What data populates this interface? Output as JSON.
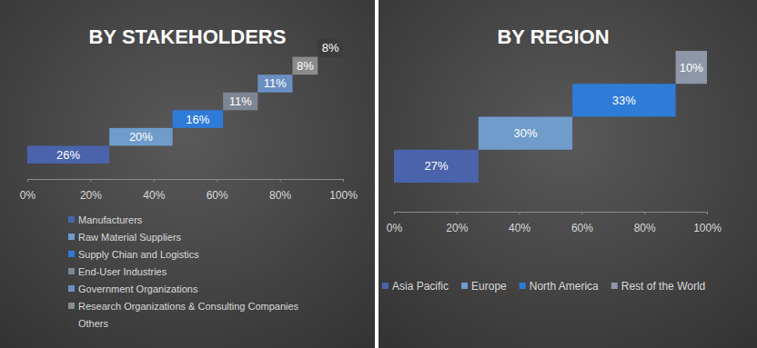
{
  "chart_data": [
    {
      "type": "waterfall",
      "title": "BY STAKEHOLDERS",
      "orientation": "horizontal",
      "categories": [
        "Manufacturers",
        "Raw Material Suppliers",
        "Supply Chian and Logistics",
        "End-User Industries",
        "Government Organizations",
        "Research Organizations & Consulting Companies",
        "Others"
      ],
      "values": [
        26,
        20,
        16,
        11,
        11,
        8,
        8
      ],
      "value_labels": [
        "26%",
        "20%",
        "16%",
        "11%",
        "11%",
        "8%",
        "8%"
      ],
      "colors": [
        "#4a63aa",
        "#709ccc",
        "#2f7bd8",
        "#7e8593",
        "#6b8fc2",
        "#8b8b8b",
        "#3c3c3c"
      ],
      "xlim": [
        0,
        100
      ],
      "xticks": [
        {
          "value": 0,
          "label": "0%"
        },
        {
          "value": 20,
          "label": "20%"
        },
        {
          "value": 40,
          "label": "40%"
        },
        {
          "value": 60,
          "label": "60%"
        },
        {
          "value": 80,
          "label": "80%"
        },
        {
          "value": 100,
          "label": "100%"
        }
      ],
      "data_labels": true,
      "tick_labels": "x",
      "legend": "bottom",
      "grid": false
    },
    {
      "type": "waterfall",
      "title": "BY REGION",
      "orientation": "horizontal",
      "categories": [
        "Asia Pacific",
        "Europe",
        "North America",
        "Rest of the World"
      ],
      "values": [
        27,
        30,
        33,
        10
      ],
      "value_labels": [
        "27%",
        "30%",
        "33%",
        "10%"
      ],
      "colors": [
        "#4a63aa",
        "#709ccc",
        "#2f7bd8",
        "#8d97a8"
      ],
      "xlim": [
        0,
        100
      ],
      "xticks": [
        {
          "value": 0,
          "label": "0%"
        },
        {
          "value": 20,
          "label": "20%"
        },
        {
          "value": 40,
          "label": "40%"
        },
        {
          "value": 60,
          "label": "60%"
        },
        {
          "value": 80,
          "label": "80%"
        },
        {
          "value": 100,
          "label": "100%"
        }
      ],
      "data_labels": true,
      "tick_labels": "x",
      "legend": "bottom",
      "grid": false
    }
  ]
}
